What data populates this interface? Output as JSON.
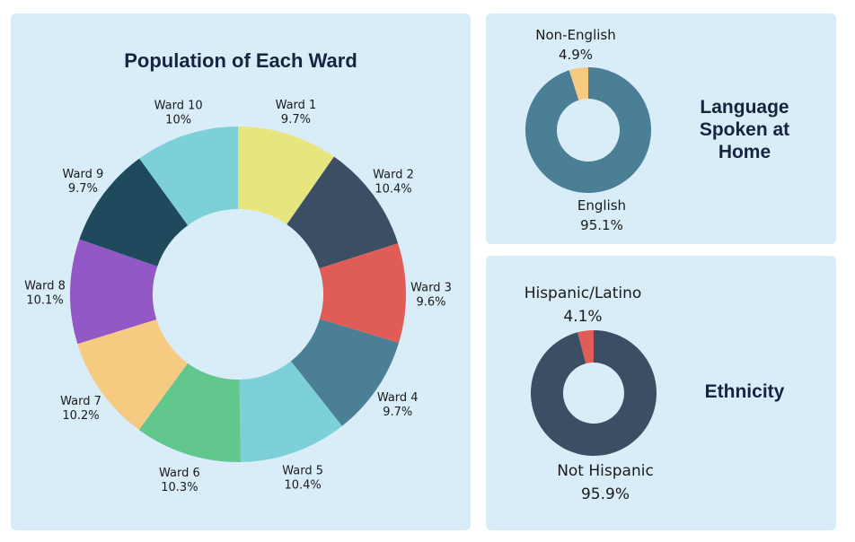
{
  "chart_data": [
    {
      "type": "pie",
      "title": "Population of Each Ward",
      "donut": true,
      "categories": [
        "Ward 1",
        "Ward 2",
        "Ward 3",
        "Ward 4",
        "Ward 5",
        "Ward 6",
        "Ward 7",
        "Ward 8",
        "Ward 9",
        "Ward 10"
      ],
      "values": [
        9.7,
        10.4,
        9.6,
        9.7,
        10.4,
        10.3,
        10.2,
        10.1,
        9.7,
        10.0
      ],
      "value_labels": [
        "9.7%",
        "10.4%",
        "9.6%",
        "9.7%",
        "10.4%",
        "10.3%",
        "10.2%",
        "10.1%",
        "9.7%",
        "10%"
      ],
      "colors": [
        "#e6e57e",
        "#3b4e63",
        "#e05c57",
        "#4a7f96",
        "#7dcfd8",
        "#62c78d",
        "#f7ca82",
        "#9259c6",
        "#1f4a5d",
        "#7dcfd8"
      ]
    },
    {
      "type": "pie",
      "title": "Language Spoken at Home",
      "title_lines": [
        "Language",
        "Spoken at",
        "Home"
      ],
      "donut": true,
      "categories": [
        "English",
        "Non-English"
      ],
      "values": [
        95.1,
        4.9
      ],
      "value_labels": [
        "95.1%",
        "4.9%"
      ],
      "colors": [
        "#4a7f96",
        "#f7ca82"
      ]
    },
    {
      "type": "pie",
      "title": "Ethnicity",
      "donut": true,
      "categories": [
        "Not Hispanic",
        "Hispanic/Latino"
      ],
      "values": [
        95.9,
        4.1
      ],
      "value_labels": [
        "95.9%",
        "4.1%"
      ],
      "colors": [
        "#3b4e63",
        "#e05c57"
      ]
    }
  ]
}
